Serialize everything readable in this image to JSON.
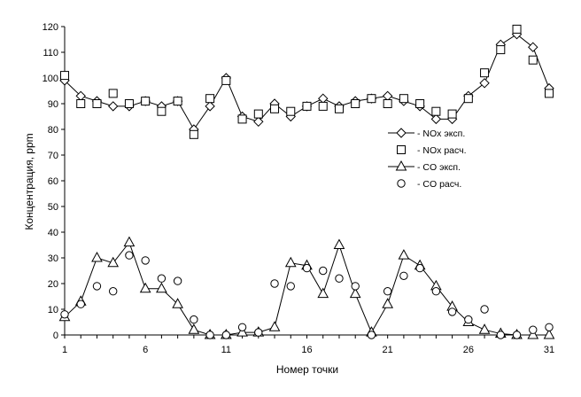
{
  "chart_data": {
    "type": "line",
    "xlabel": "Номер точки",
    "ylabel": "Концентрация, ppm",
    "xlim": [
      1,
      31
    ],
    "ylim": [
      0,
      120
    ],
    "x_ticks": [
      "1",
      "6",
      "11",
      "16",
      "21",
      "26",
      "31"
    ],
    "y_ticks": [
      "0",
      "10",
      "20",
      "30",
      "40",
      "50",
      "60",
      "70",
      "80",
      "90",
      "100",
      "110",
      "120"
    ],
    "grid": false,
    "legend_position": "right-center",
    "x": [
      1,
      2,
      3,
      4,
      5,
      6,
      7,
      8,
      9,
      10,
      11,
      12,
      13,
      14,
      15,
      16,
      17,
      18,
      19,
      20,
      21,
      22,
      23,
      24,
      25,
      26,
      27,
      28,
      29,
      30,
      31
    ],
    "series": [
      {
        "name": "- NOx эксп.",
        "marker": "diamond",
        "line": true,
        "values": [
          99,
          93,
          91,
          89,
          89,
          91,
          89,
          91,
          80,
          89,
          100,
          85,
          83,
          90,
          85,
          89,
          92,
          89,
          91,
          92,
          93,
          91,
          89,
          84,
          84,
          93,
          98,
          113,
          117,
          112,
          96
        ]
      },
      {
        "name": "- NOx расч.",
        "marker": "square",
        "line": false,
        "values": [
          101,
          90,
          90,
          94,
          90,
          91,
          87,
          91,
          78,
          92,
          99,
          84,
          86,
          88,
          87,
          89,
          89,
          88,
          90,
          92,
          90,
          92,
          90,
          87,
          86,
          92,
          102,
          111,
          119,
          107,
          94
        ]
      },
      {
        "name": "- CO эксп.",
        "marker": "triangle",
        "line": true,
        "values": [
          7,
          13,
          30,
          28,
          36,
          18,
          18,
          12,
          2,
          0,
          0,
          1,
          1,
          3,
          28,
          27,
          16,
          35,
          16,
          1,
          12,
          31,
          27,
          19,
          11,
          5,
          2,
          0.5,
          0,
          0,
          0
        ]
      },
      {
        "name": "- CO расч.",
        "marker": "circle",
        "line": false,
        "values": [
          8,
          12,
          19,
          17,
          31,
          29,
          22,
          21,
          6,
          0,
          0,
          3,
          1,
          20,
          19,
          26,
          25,
          22,
          19,
          0,
          17,
          23,
          26,
          17,
          9,
          6,
          10,
          0,
          0,
          2,
          3
        ]
      }
    ]
  }
}
